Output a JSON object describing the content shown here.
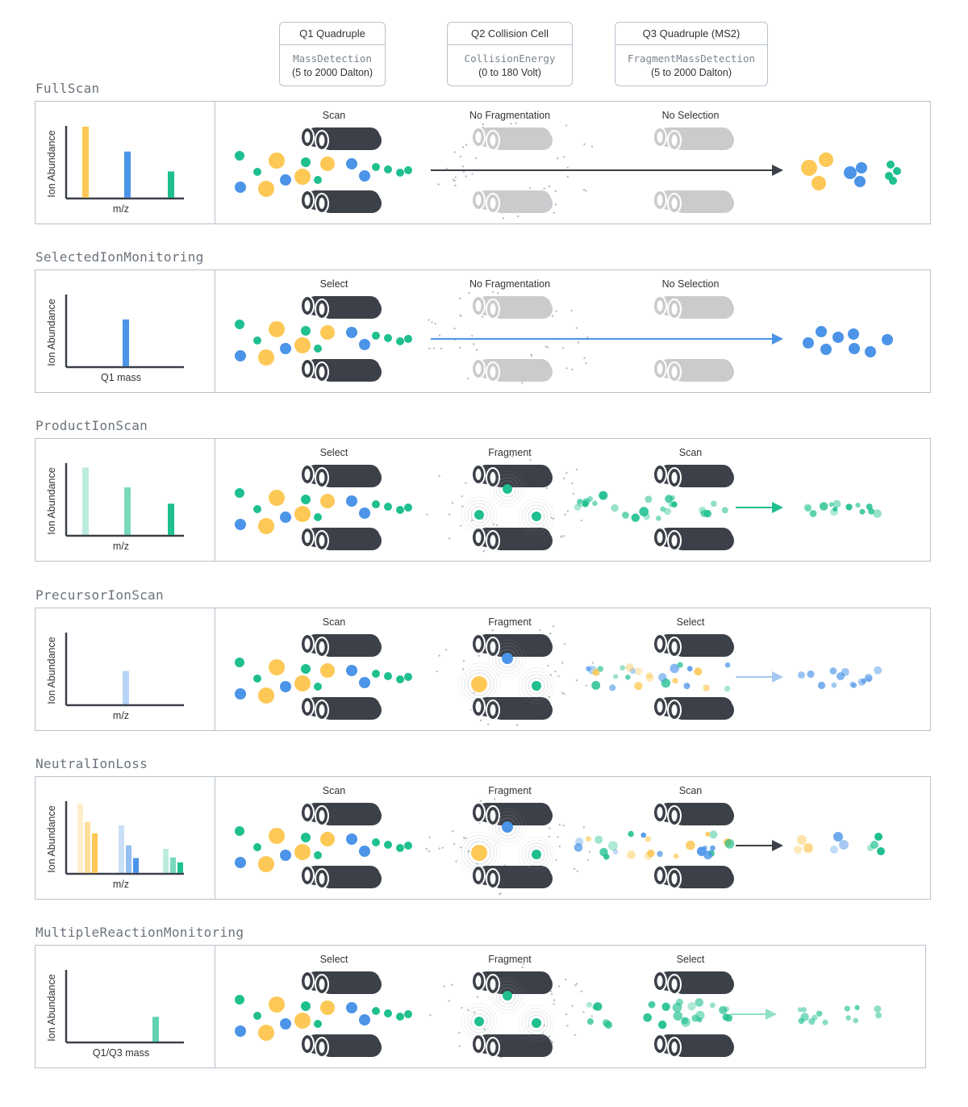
{
  "stages": [
    {
      "title": "Q1 Quadruple",
      "param": "MassDetection",
      "range": "(5 to 2000 Dalton)"
    },
    {
      "title": "Q2 Collision Cell",
      "param": "CollisionEnergy",
      "range": "(0 to 180 Volt)"
    },
    {
      "title": "Q3 Quadruple (MS2)",
      "param": "FragmentMassDetection",
      "range": "(5 to 2000 Dalton)"
    }
  ],
  "colors": {
    "yellow": "#fdc856",
    "blue": "#4b94e8",
    "green": "#1fbf8f",
    "dark": "#3c4048",
    "grey": "#c9cbcd",
    "frame": "#b9c2cc"
  },
  "modes": [
    {
      "name": "FullScan",
      "ylabel": "Ion Abundance",
      "xlabel": "m/z",
      "q1": "Scan",
      "q2": "No Fragmentation",
      "q3": "No Selection",
      "bars": [
        {
          "v": 1.0,
          "c": "yellow",
          "a": 1
        },
        {
          "v": 0.65,
          "c": "blue",
          "a": 1
        },
        {
          "v": 0.37,
          "c": "green",
          "a": 1
        }
      ],
      "arrow": "dark"
    },
    {
      "name": "SelectedIonMonitoring",
      "ylabel": "Ion Abundance",
      "xlabel": "Q1 mass",
      "q1": "Select",
      "q2": "No Fragmentation",
      "q3": "No Selection",
      "bars": [
        {
          "v": 0.66,
          "c": "blue",
          "a": 1
        }
      ],
      "arrow": "blue"
    },
    {
      "name": "ProductIonScan",
      "ylabel": "Ion Abundance",
      "xlabel": "m/z",
      "q1": "Select",
      "q2": "Fragment",
      "q3": "Scan",
      "bars": [
        {
          "v": 0.95,
          "c": "green",
          "a": 0.3
        },
        {
          "v": 0.67,
          "c": "green",
          "a": 0.6
        },
        {
          "v": 0.44,
          "c": "green",
          "a": 1
        }
      ],
      "arrow": "green"
    },
    {
      "name": "PrecursorIonScan",
      "ylabel": "Ion Abundance",
      "xlabel": "m/z",
      "q1": "Scan",
      "q2": "Fragment",
      "q3": "Select",
      "bars": [
        {
          "v": 0.47,
          "c": "blue",
          "a": 0.4
        }
      ],
      "arrow": "lightblue"
    },
    {
      "name": "NeutralIonLoss",
      "ylabel": "Ion Abundance",
      "xlabel": "m/z",
      "q1": "Scan",
      "q2": "Fragment",
      "q3": "Scan",
      "bars": [
        {
          "v": 0.98,
          "c": "yellow",
          "a": 0.3
        },
        {
          "v": 0.72,
          "c": "yellow",
          "a": 0.6
        },
        {
          "v": 0.56,
          "c": "yellow",
          "a": 1
        },
        {
          "v": 0.67,
          "c": "blue",
          "a": 0.3
        },
        {
          "v": 0.39,
          "c": "blue",
          "a": 0.6
        },
        {
          "v": 0.21,
          "c": "blue",
          "a": 1
        },
        {
          "v": 0.34,
          "c": "green",
          "a": 0.3
        },
        {
          "v": 0.22,
          "c": "green",
          "a": 0.6
        },
        {
          "v": 0.15,
          "c": "green",
          "a": 1
        }
      ],
      "arrow": "dark"
    },
    {
      "name": "MultipleReactionMonitoring",
      "ylabel": "Ion Abundance",
      "xlabel": "Q1/Q3 mass",
      "q1": "Select",
      "q2": "Fragment",
      "q3": "Select",
      "bars": [
        {
          "v": 0.35,
          "c": "green",
          "a": 0.7
        }
      ],
      "arrow": "lightgreen"
    }
  ]
}
